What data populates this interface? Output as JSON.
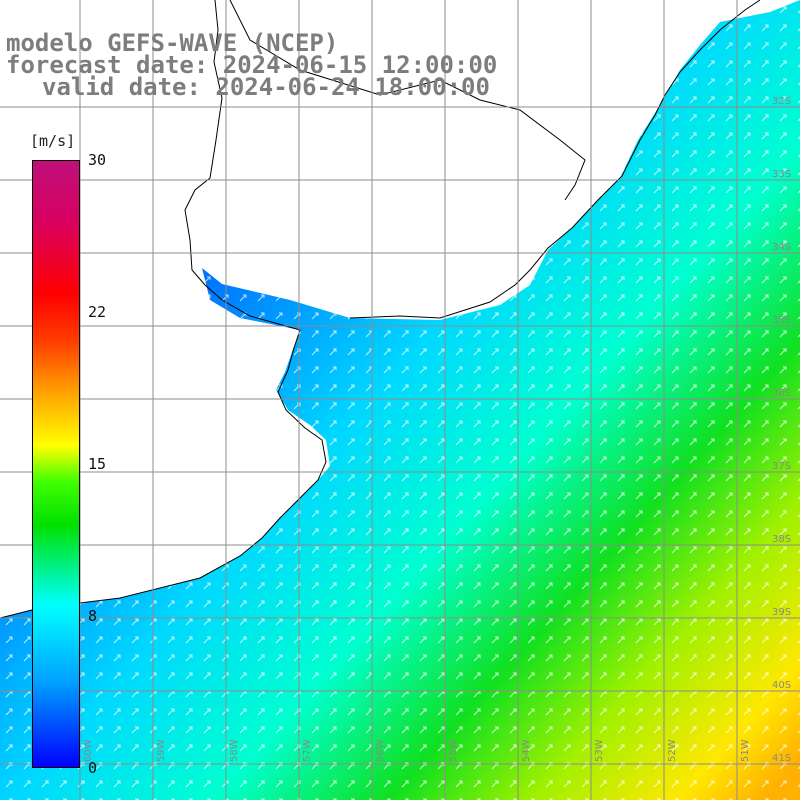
{
  "title": {
    "line1": "modelo GEFS-WAVE (NCEP)",
    "line2": "forecast date: 2024-06-15 12:00:00",
    "line3": "valid date: 2024-06-24 18:00:00"
  },
  "colorbar": {
    "unit": "[m/s]",
    "min": 0,
    "max": 30,
    "ticks": [
      "30",
      "22",
      "15",
      "8",
      "0"
    ]
  },
  "map": {
    "lat_labels": [
      "32S",
      "33S",
      "34S",
      "35S",
      "36S",
      "37S",
      "38S",
      "39S",
      "40S",
      "41S"
    ],
    "lon_labels": [
      "60W",
      "59W",
      "58W",
      "57W",
      "56W",
      "55W",
      "54W",
      "53W",
      "52W",
      "51W"
    ],
    "field": "wind speed",
    "land_color": "#ffffff",
    "grid_color": "#8c8c8c"
  }
}
